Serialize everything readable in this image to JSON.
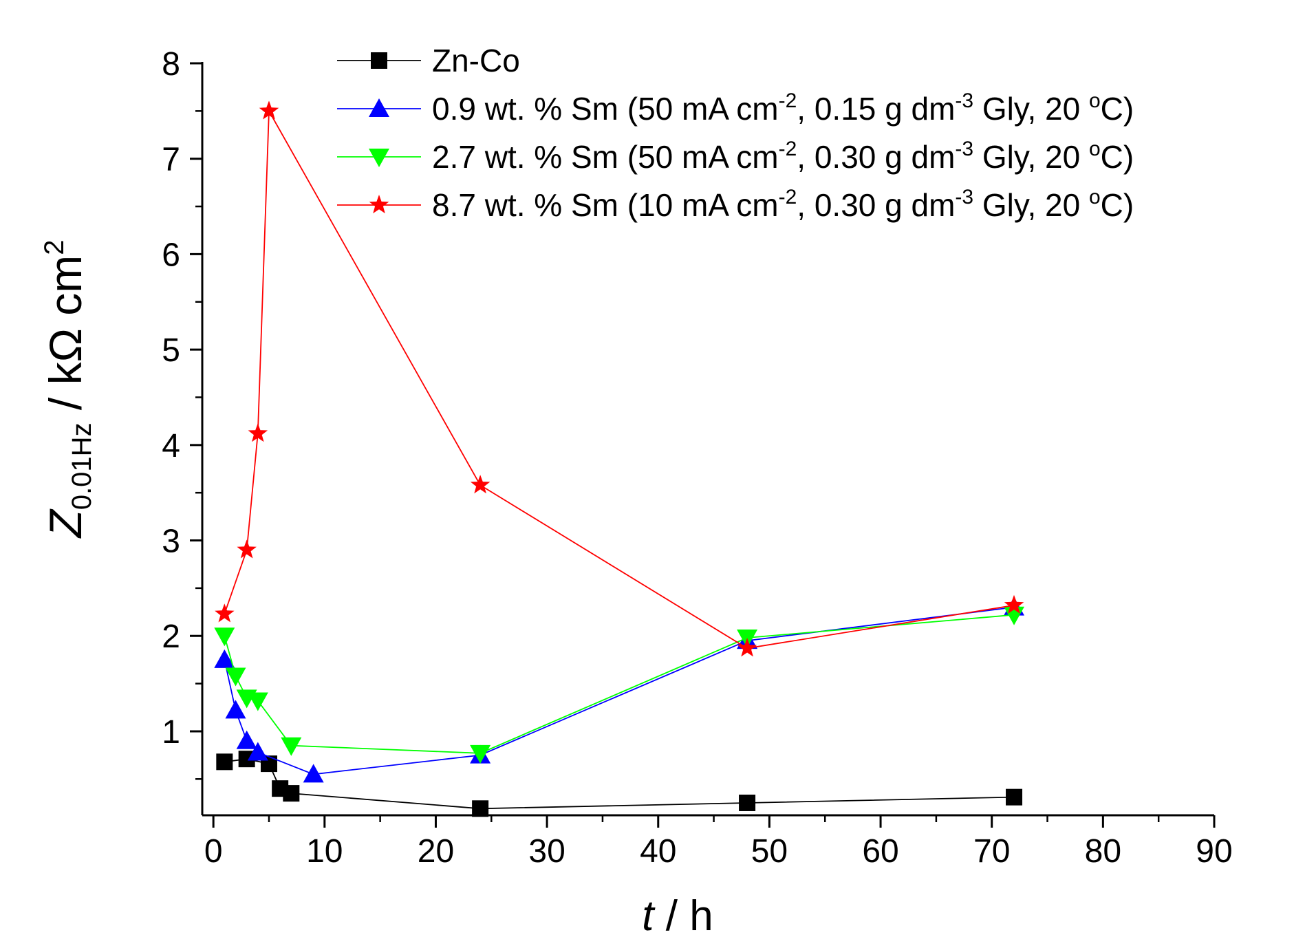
{
  "chart_data": {
    "type": "line",
    "title": "",
    "xlabel": {
      "symbol": "t",
      "sep": " / ",
      "unit": "h"
    },
    "ylabel": {
      "symbol": "Z",
      "subscript": "0.01Hz",
      "unit": " / kΩ cm",
      "sup": "2"
    },
    "xlim": [
      -1,
      90
    ],
    "ylim": [
      0.12,
      8
    ],
    "xticks": [
      0,
      10,
      20,
      30,
      40,
      50,
      60,
      70,
      80,
      90
    ],
    "yticks": [
      1,
      2,
      3,
      4,
      5,
      6,
      7,
      8
    ],
    "legend_position": "top-right",
    "series": [
      {
        "name": "Zn-Co",
        "label": {
          "main": "Zn-Co"
        },
        "color": "#000000",
        "marker": "square",
        "x": [
          1,
          3,
          5,
          6,
          7,
          24,
          48,
          72
        ],
        "y": [
          0.68,
          0.71,
          0.66,
          0.4,
          0.35,
          0.19,
          0.25,
          0.31
        ]
      },
      {
        "name": "0.9 wt. % Sm",
        "label": {
          "main": "0.9 wt. % Sm (50 mA cm",
          "sup1": "-2",
          "mid": ", 0.15 g dm",
          "sup2": "-3",
          "mid2": " Gly, 20 ",
          "sup3": "o",
          "end": "C)"
        },
        "color": "#0000ff",
        "marker": "triangle-up",
        "x": [
          1,
          2,
          3,
          4,
          9,
          24,
          48,
          72
        ],
        "y": [
          1.75,
          1.22,
          0.9,
          0.78,
          0.55,
          0.75,
          1.95,
          2.3
        ]
      },
      {
        "name": "2.7 wt. % Sm",
        "label": {
          "main": "2.7 wt. % Sm (50 mA cm",
          "sup1": "-2",
          "mid": ", 0.30 g dm",
          "sup2": "-3",
          "mid2": " Gly, 20 ",
          "sup3": "o",
          "end": "C)"
        },
        "color": "#00ff00",
        "marker": "triangle-down",
        "x": [
          1,
          2,
          3,
          4,
          7,
          24,
          48,
          72
        ],
        "y": [
          2.0,
          1.58,
          1.35,
          1.32,
          0.85,
          0.77,
          1.98,
          2.22
        ]
      },
      {
        "name": "8.7 wt. % Sm",
        "label": {
          "main": "8.7 wt. % Sm (10 mA cm",
          "sup1": "-2",
          "mid": ", 0.30 g dm",
          "sup2": "-3",
          "mid2": " Gly, 20 ",
          "sup3": "o",
          "end": "C)"
        },
        "color": "#ff0000",
        "marker": "star",
        "x": [
          1,
          3,
          4,
          5,
          24,
          48,
          72
        ],
        "y": [
          2.23,
          2.9,
          4.12,
          7.5,
          3.58,
          1.87,
          2.32
        ]
      }
    ]
  }
}
